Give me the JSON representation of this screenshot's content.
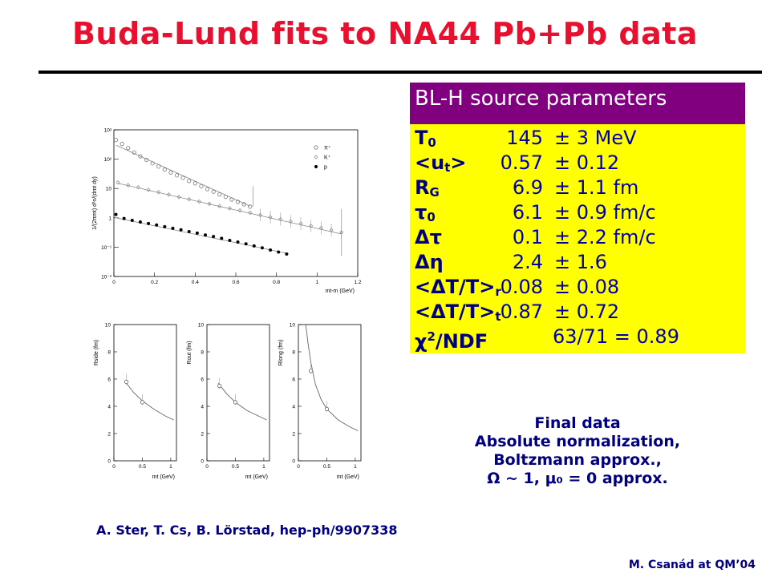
{
  "slide": {
    "title": "Buda-Lund fits to NA44 Pb+Pb data",
    "reference": "A. Ster, T. Cs, B. Lörstad, hep-ph/9907338",
    "credit": "M. Csanád at QM’04"
  },
  "param_table": {
    "header": "BL-H source parameters",
    "rows": [
      {
        "name": "T",
        "sub": "0",
        "sup": "",
        "value": "145",
        "error": "± 3 MeV"
      },
      {
        "name": "<u",
        "sub": "t",
        "sup": "",
        "tail": ">",
        "value": "0.57",
        "error": "± 0.12"
      },
      {
        "name": "R",
        "sub": "G",
        "sup": "",
        "value": "6.9",
        "error": "± 1.1 fm"
      },
      {
        "name": "τ",
        "sub": "0",
        "sup": "",
        "value": "6.1",
        "error": "± 0.9 fm/c"
      },
      {
        "name": "Δτ",
        "sub": "",
        "sup": "",
        "value": "0.1",
        "error": "± 2.2 fm/c"
      },
      {
        "name": "Δη",
        "sub": "",
        "sup": "",
        "value": "2.4",
        "error": "± 1.6"
      },
      {
        "name": "<ΔT/T>",
        "sub": "r",
        "sup": "",
        "value": "0.08",
        "error": "± 0.08"
      },
      {
        "name": "<ΔT/T>",
        "sub": "t",
        "sup": "",
        "value": "0.87",
        "error": "± 0.72"
      },
      {
        "name": "χ",
        "sub": "",
        "sup": "2",
        "tail": "/NDF",
        "value": "",
        "error": "63/71 = 0.89"
      }
    ]
  },
  "note": {
    "lines": [
      "Final data",
      "Absolute normalization,",
      "Boltzmann approx.,",
      "Ω ~ 1, μ₀ = 0 approx."
    ]
  },
  "chart_data": [
    {
      "type": "scatter",
      "title": "",
      "xlabel": "mt-m (GeV)",
      "ylabel": "1/(2πmt) d²n/(dmt dy)",
      "xlim": [
        0,
        1.2
      ],
      "ylim": [
        0.01,
        1000
      ],
      "yscale": "log",
      "x_ticks": [
        "0",
        "0.2",
        "0.4",
        "0.6",
        "0.8",
        "1",
        "1.2"
      ],
      "y_ticks": [
        "10⁻²",
        "10⁻¹",
        "1",
        "10",
        "10²",
        "10³"
      ],
      "legend": {
        "placement": "top-right",
        "entries": [
          "π⁺",
          "K⁺",
          "p"
        ]
      },
      "series": [
        {
          "name": "π⁺",
          "marker": "open-circle",
          "x": [
            0.01,
            0.04,
            0.07,
            0.1,
            0.13,
            0.16,
            0.19,
            0.22,
            0.25,
            0.28,
            0.31,
            0.34,
            0.37,
            0.4,
            0.43,
            0.46,
            0.49,
            0.52,
            0.55,
            0.58,
            0.61,
            0.64,
            0.67
          ],
          "y": [
            450,
            330,
            240,
            170,
            125,
            95,
            72,
            56,
            44,
            35,
            28,
            23,
            18,
            15,
            12,
            9.5,
            7.8,
            6.3,
            5.2,
            4.2,
            3.5,
            2.9,
            2.4
          ],
          "fit": [
            [
              0.01,
              300
            ],
            [
              0.67,
              2.5
            ]
          ]
        },
        {
          "name": "K⁺",
          "marker": "open-diamond",
          "x": [
            0.02,
            0.07,
            0.12,
            0.17,
            0.22,
            0.27,
            0.32,
            0.37,
            0.42,
            0.47,
            0.52,
            0.57,
            0.62,
            0.67,
            0.72,
            0.77,
            0.82,
            0.87,
            0.92,
            0.97,
            1.02,
            1.07,
            1.12
          ],
          "y": [
            16,
            13,
            11,
            9.0,
            7.5,
            6.2,
            5.1,
            4.3,
            3.6,
            3.0,
            2.5,
            2.1,
            1.8,
            1.5,
            1.25,
            1.05,
            0.9,
            0.75,
            0.63,
            0.53,
            0.45,
            0.38,
            0.32
          ],
          "fit": [
            [
              0.02,
              15
            ],
            [
              1.12,
              0.28
            ]
          ]
        },
        {
          "name": "p",
          "marker": "filled-circle",
          "x": [
            0.01,
            0.05,
            0.09,
            0.13,
            0.17,
            0.21,
            0.25,
            0.29,
            0.33,
            0.37,
            0.41,
            0.45,
            0.49,
            0.53,
            0.57,
            0.61,
            0.65,
            0.69,
            0.73,
            0.77,
            0.81,
            0.85
          ],
          "y": [
            1.3,
            0.95,
            0.82,
            0.72,
            0.64,
            0.57,
            0.5,
            0.44,
            0.39,
            0.34,
            0.3,
            0.26,
            0.23,
            0.2,
            0.17,
            0.15,
            0.13,
            0.11,
            0.095,
            0.08,
            0.068,
            0.058
          ],
          "fit": [
            [
              0.01,
              1.0
            ],
            [
              0.86,
              0.06
            ]
          ]
        }
      ]
    },
    {
      "type": "scatter",
      "title": "",
      "xlabel": "mt (GeV)",
      "ylabel": "Rside (fm)",
      "xlim": [
        0,
        1.1
      ],
      "ylim": [
        0,
        10
      ],
      "x_ticks": [
        "0",
        "0.5",
        "1"
      ],
      "y_ticks": [
        "0",
        "2",
        "4",
        "6",
        "8",
        "10"
      ],
      "points": [
        {
          "x": 0.22,
          "y": 5.8
        },
        {
          "x": 0.5,
          "y": 4.3
        }
      ],
      "fit": [
        [
          0.2,
          5.8
        ],
        [
          0.35,
          5.0
        ],
        [
          0.5,
          4.4
        ],
        [
          0.7,
          3.8
        ],
        [
          0.9,
          3.3
        ],
        [
          1.05,
          3.0
        ]
      ]
    },
    {
      "type": "scatter",
      "title": "",
      "xlabel": "mt (GeV)",
      "ylabel": "Rout (fm)",
      "xlim": [
        0,
        1.1
      ],
      "ylim": [
        0,
        10
      ],
      "x_ticks": [
        "0",
        "0.5",
        "1"
      ],
      "y_ticks": [
        "0",
        "2",
        "4",
        "6",
        "8",
        "10"
      ],
      "points": [
        {
          "x": 0.22,
          "y": 5.5
        },
        {
          "x": 0.5,
          "y": 4.3
        }
      ],
      "fit": [
        [
          0.2,
          5.7
        ],
        [
          0.35,
          4.9
        ],
        [
          0.5,
          4.3
        ],
        [
          0.7,
          3.7
        ],
        [
          0.9,
          3.3
        ],
        [
          1.05,
          3.0
        ]
      ]
    },
    {
      "type": "scatter",
      "title": "",
      "xlabel": "mt (GeV)",
      "ylabel": "Rlong (fm)",
      "xlim": [
        0,
        1.1
      ],
      "ylim": [
        0,
        10
      ],
      "x_ticks": [
        "0",
        "0.5",
        "1"
      ],
      "y_ticks": [
        "0",
        "2",
        "4",
        "6",
        "8",
        "10"
      ],
      "points": [
        {
          "x": 0.22,
          "y": 6.6
        },
        {
          "x": 0.5,
          "y": 3.8
        }
      ],
      "fit": [
        [
          0.13,
          10
        ],
        [
          0.17,
          8.6
        ],
        [
          0.22,
          7.2
        ],
        [
          0.3,
          5.6
        ],
        [
          0.4,
          4.5
        ],
        [
          0.5,
          3.8
        ],
        [
          0.7,
          3.0
        ],
        [
          0.9,
          2.5
        ],
        [
          1.05,
          2.2
        ]
      ]
    }
  ]
}
